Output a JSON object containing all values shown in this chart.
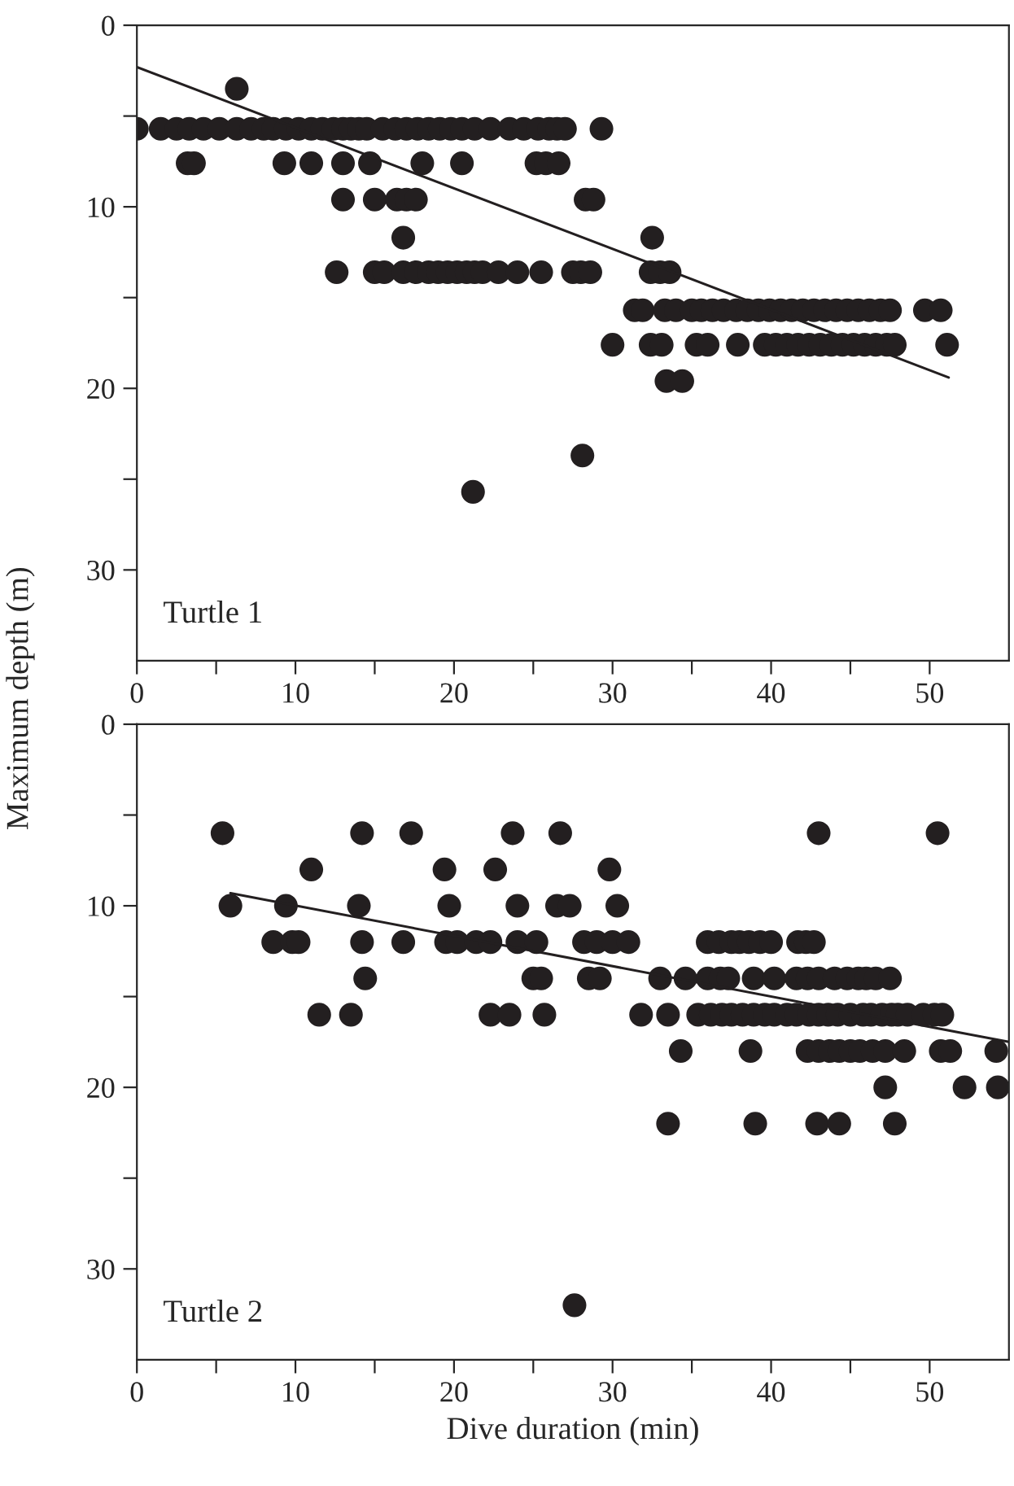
{
  "chart_data": [
    {
      "type": "scatter",
      "ylabel": "Maximum depth (m)",
      "annotations": [
        "Turtle 1"
      ],
      "xlim": [
        0,
        55
      ],
      "ylim": [
        35,
        0
      ],
      "xticks": [
        0,
        {
          "value": 5,
          "label": null
        },
        10,
        {
          "value": 15,
          "label": null
        },
        20,
        {
          "value": 25,
          "label": null
        },
        30,
        {
          "value": 35,
          "label": null
        },
        40,
        {
          "value": 45,
          "label": null
        },
        50
      ],
      "yticks": [
        0,
        {
          "value": 5,
          "label": null
        },
        10,
        {
          "value": 15,
          "label": null
        },
        20,
        {
          "value": 25,
          "label": null
        },
        30
      ],
      "grid": false,
      "series": [
        {
          "marker": "circle",
          "color": "#231f20",
          "x": [
            0,
            1.5,
            2.5,
            3.3,
            4.2,
            5.2,
            6.3,
            7.2,
            8,
            8.6,
            9.4,
            10.2,
            11,
            11.7,
            12.4,
            13,
            13.5,
            14,
            14.5,
            15.5,
            16.3,
            17,
            17.7,
            18.4,
            19.1,
            19.8,
            20.5,
            21.3,
            22.3,
            23.5,
            24.4,
            25.3,
            26,
            26.5,
            27,
            29.3,
            6.3,
            3.2,
            3.6,
            9.3,
            11,
            13,
            14.7,
            18,
            20.5,
            25.2,
            25.8,
            26.6,
            13,
            15,
            16.4,
            17,
            17.6,
            28.3,
            28.8,
            16.8,
            32.5,
            12.6,
            15,
            15.6,
            16.8,
            17.6,
            18.4,
            19,
            19.6,
            20.2,
            20.8,
            21.3,
            21.8,
            22.8,
            24,
            25.5,
            27.5,
            28,
            28.6,
            32.4,
            33,
            33.6,
            31.4,
            31.9,
            33.3,
            34,
            35,
            35.6,
            36.3,
            37,
            37.8,
            38.5,
            39.2,
            39.9,
            40.6,
            41.3,
            42,
            42.7,
            43.4,
            44.1,
            44.8,
            45.5,
            46.2,
            46.9,
            47.5,
            49.7,
            50.7,
            30,
            32.4,
            33.1,
            35.3,
            36,
            37.9,
            39.6,
            40.3,
            41,
            41.7,
            42.4,
            43.1,
            43.8,
            44.5,
            45.2,
            45.9,
            46.6,
            47.3,
            47.8,
            51.1,
            33.4,
            34.4,
            28.1,
            21.2
          ],
          "values": [
            5.7,
            5.7,
            5.7,
            5.7,
            5.7,
            5.7,
            5.7,
            5.7,
            5.7,
            5.7,
            5.7,
            5.7,
            5.7,
            5.7,
            5.7,
            5.7,
            5.7,
            5.7,
            5.7,
            5.7,
            5.7,
            5.7,
            5.7,
            5.7,
            5.7,
            5.7,
            5.7,
            5.7,
            5.7,
            5.7,
            5.7,
            5.7,
            5.7,
            5.7,
            5.7,
            5.7,
            3.5,
            7.6,
            7.6,
            7.6,
            7.6,
            7.6,
            7.6,
            7.6,
            7.6,
            7.6,
            7.6,
            7.6,
            9.6,
            9.6,
            9.6,
            9.6,
            9.6,
            9.6,
            9.6,
            11.7,
            11.7,
            13.6,
            13.6,
            13.6,
            13.6,
            13.6,
            13.6,
            13.6,
            13.6,
            13.6,
            13.6,
            13.6,
            13.6,
            13.6,
            13.6,
            13.6,
            13.6,
            13.6,
            13.6,
            13.6,
            13.6,
            13.6,
            15.7,
            15.7,
            15.7,
            15.7,
            15.7,
            15.7,
            15.7,
            15.7,
            15.7,
            15.7,
            15.7,
            15.7,
            15.7,
            15.7,
            15.7,
            15.7,
            15.7,
            15.7,
            15.7,
            15.7,
            15.7,
            15.7,
            15.7,
            15.7,
            15.7,
            17.6,
            17.6,
            17.6,
            17.6,
            17.6,
            17.6,
            17.6,
            17.6,
            17.6,
            17.6,
            17.6,
            17.6,
            17.6,
            17.6,
            17.6,
            17.6,
            17.6,
            17.6,
            17.6,
            17.6,
            19.6,
            19.6,
            23.7,
            25.7
          ]
        },
        {
          "type": "line",
          "marker": "none",
          "color": "#231f20",
          "x": [
            0,
            51.2
          ],
          "values": [
            2.3,
            19.4
          ]
        }
      ]
    },
    {
      "type": "scatter",
      "xlabel": "Dive duration (min)",
      "annotations": [
        "Turtle 2"
      ],
      "xlim": [
        0,
        55
      ],
      "ylim": [
        35,
        0
      ],
      "xticks": [
        0,
        {
          "value": 5,
          "label": null
        },
        10,
        {
          "value": 15,
          "label": null
        },
        20,
        {
          "value": 25,
          "label": null
        },
        30,
        {
          "value": 35,
          "label": null
        },
        40,
        {
          "value": 45,
          "label": null
        },
        50
      ],
      "yticks": [
        0,
        {
          "value": 5,
          "label": null
        },
        10,
        {
          "value": 15,
          "label": null
        },
        20,
        {
          "value": 25,
          "label": null
        },
        30
      ],
      "grid": false,
      "series": [
        {
          "marker": "circle",
          "color": "#231f20",
          "x": [
            5.4,
            14.2,
            17.3,
            23.7,
            26.7,
            43,
            50.5,
            11,
            19.4,
            22.6,
            29.8,
            5.9,
            9.4,
            14,
            19.7,
            24,
            26.5,
            27.3,
            30.3,
            8.6,
            9.8,
            10.2,
            14.2,
            16.8,
            19.5,
            20.2,
            21.4,
            22.3,
            24,
            25.2,
            28.2,
            29,
            30,
            31,
            36,
            36.7,
            37.5,
            38,
            38.6,
            39.3,
            40,
            41.7,
            42.2,
            42.7,
            14.4,
            25,
            25.5,
            28.5,
            29.2,
            33,
            34.6,
            36,
            36.8,
            37.3,
            38.9,
            40.2,
            41.6,
            42.3,
            43,
            44,
            44.8,
            45.5,
            46,
            46.6,
            47.5,
            11.5,
            13.5,
            22.3,
            23.5,
            25.7,
            31.8,
            33.5,
            35.4,
            36.2,
            36.9,
            37.5,
            38.2,
            38.9,
            39.6,
            40.2,
            41,
            41.6,
            42.4,
            43,
            43.6,
            44.2,
            45,
            45.8,
            46.3,
            47,
            47.6,
            48,
            48.6,
            49.6,
            50.3,
            50.8,
            34.3,
            38.7,
            42.3,
            43,
            43.7,
            44.3,
            45,
            45.6,
            46.4,
            47.2,
            48.4,
            50.7,
            51.3,
            54.2,
            47.2,
            52.2,
            54.3,
            33.5,
            39,
            42.9,
            44.3,
            47.8,
            27.6
          ],
          "values": [
            6,
            6,
            6,
            6,
            6,
            6,
            6,
            8,
            8,
            8,
            8,
            10,
            10,
            10,
            10,
            10,
            10,
            10,
            10,
            12,
            12,
            12,
            12,
            12,
            12,
            12,
            12,
            12,
            12,
            12,
            12,
            12,
            12,
            12,
            12,
            12,
            12,
            12,
            12,
            12,
            12,
            12,
            12,
            12,
            14,
            14,
            14,
            14,
            14,
            14,
            14,
            14,
            14,
            14,
            14,
            14,
            14,
            14,
            14,
            14,
            14,
            14,
            14,
            14,
            14,
            16,
            16,
            16,
            16,
            16,
            16,
            16,
            16,
            16,
            16,
            16,
            16,
            16,
            16,
            16,
            16,
            16,
            16,
            16,
            16,
            16,
            16,
            16,
            16,
            16,
            16,
            16,
            16,
            16,
            16,
            16,
            18,
            18,
            18,
            18,
            18,
            18,
            18,
            18,
            18,
            18,
            18,
            18,
            18,
            18,
            20,
            20,
            20,
            22,
            22,
            22,
            22,
            22,
            32
          ]
        },
        {
          "type": "line",
          "marker": "none",
          "color": "#231f20",
          "x": [
            5.9,
            55
          ],
          "values": [
            9.3,
            17.5
          ]
        }
      ]
    }
  ]
}
